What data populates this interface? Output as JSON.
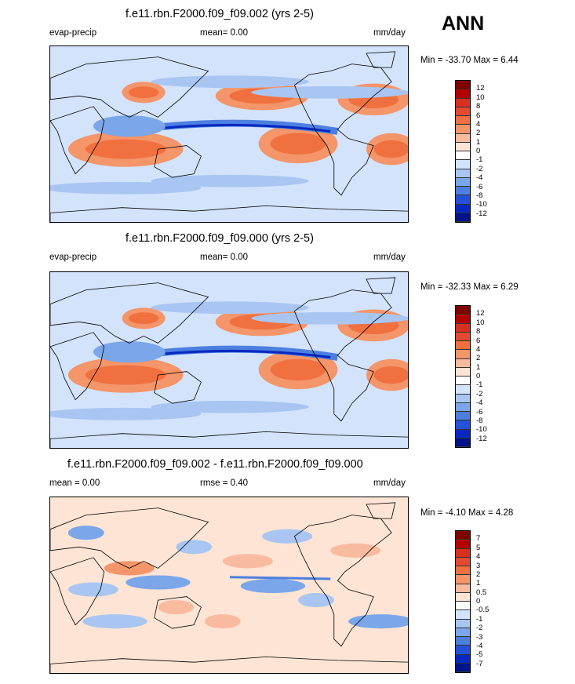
{
  "header": {
    "season": "ANN"
  },
  "chart_data": [
    {
      "type": "contour-map",
      "title": "f.e11.rbn.F2000.f09_f09.002 (yrs 2-5)",
      "left_label": "evap-precip",
      "center_label": "mean=   0.00",
      "right_label": "mm/day",
      "stats": "Min = -33.70 Max =   6.44",
      "variable": "evap-precip",
      "mean": 0.0,
      "units": "mm/day",
      "min": -33.7,
      "max": 6.44,
      "levels": [
        "12",
        "10",
        "8",
        "6",
        "4",
        "2",
        "1",
        "0",
        "-1",
        "-2",
        "-4",
        "-6",
        "-8",
        "-10",
        "-12"
      ],
      "colors": [
        "#7f0000",
        "#b30000",
        "#d7301f",
        "#e34a33",
        "#f07040",
        "#f4956a",
        "#f9bba0",
        "#fde4d4",
        "#ffffff",
        "#d3e3fb",
        "#a9c6f2",
        "#7ba6ea",
        "#4c7fe0",
        "#2550d8",
        "#0628c0",
        "#00138a"
      ]
    },
    {
      "type": "contour-map",
      "title": "f.e11.rbn.F2000.f09_f09.000 (yrs 2-5)",
      "left_label": "evap-precip",
      "center_label": "mean=   0.00",
      "right_label": "mm/day",
      "stats": "Min = -32.33 Max =   6.29",
      "variable": "evap-precip",
      "mean": 0.0,
      "units": "mm/day",
      "min": -32.33,
      "max": 6.29,
      "levels": [
        "12",
        "10",
        "8",
        "6",
        "4",
        "2",
        "1",
        "0",
        "-1",
        "-2",
        "-4",
        "-6",
        "-8",
        "-10",
        "-12"
      ],
      "colors": [
        "#7f0000",
        "#b30000",
        "#d7301f",
        "#e34a33",
        "#f07040",
        "#f4956a",
        "#f9bba0",
        "#fde4d4",
        "#ffffff",
        "#d3e3fb",
        "#a9c6f2",
        "#7ba6ea",
        "#4c7fe0",
        "#2550d8",
        "#0628c0",
        "#00138a"
      ]
    },
    {
      "type": "contour-map",
      "title": "f.e11.rbn.F2000.f09_f09.002 - f.e11.rbn.F2000.f09_f09.000",
      "left_label": "mean =   0.00",
      "center_label": "rmse =   0.40",
      "right_label": "mm/day",
      "stats": "Min =  -4.10 Max =   4.28",
      "mean": 0.0,
      "rmse": 0.4,
      "units": "mm/day",
      "min": -4.1,
      "max": 4.28,
      "levels": [
        "7",
        "5",
        "4",
        "3",
        "2",
        "1",
        "0.5",
        "0",
        "-0.5",
        "-1",
        "-2",
        "-3",
        "-4",
        "-5",
        "-7"
      ],
      "colors": [
        "#7f0000",
        "#b30000",
        "#d7301f",
        "#e34a33",
        "#f07040",
        "#f4956a",
        "#f9bba0",
        "#fde4d4",
        "#ffffff",
        "#d3e3fb",
        "#a9c6f2",
        "#7ba6ea",
        "#4c7fe0",
        "#2550d8",
        "#0628c0",
        "#00138a"
      ]
    }
  ]
}
